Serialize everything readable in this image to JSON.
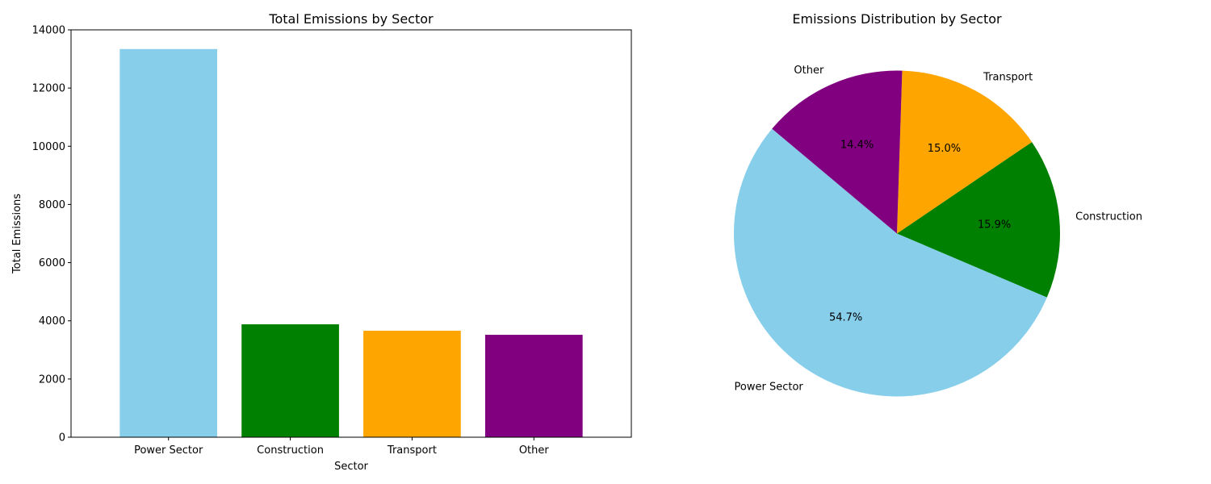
{
  "chart_data": [
    {
      "type": "bar",
      "title": "Total Emissions by Sector",
      "xlabel": "Sector",
      "ylabel": "Total Emissions",
      "categories": [
        "Power Sector",
        "Construction",
        "Transport",
        "Other"
      ],
      "values": [
        13340,
        3880,
        3660,
        3520
      ],
      "colors": [
        "#87ceeb",
        "#008000",
        "#ffa500",
        "#800080"
      ],
      "ylim": [
        0,
        14000
      ],
      "yticks": [
        0,
        2000,
        4000,
        6000,
        8000,
        10000,
        12000,
        14000
      ],
      "grid": false
    },
    {
      "type": "pie",
      "title": "Emissions Distribution by Sector",
      "labels": [
        "Power Sector",
        "Construction",
        "Transport",
        "Other"
      ],
      "values": [
        54.7,
        15.9,
        15.0,
        14.4
      ],
      "pct_labels": [
        "54.7%",
        "15.9%",
        "15.0%",
        "14.4%"
      ],
      "colors": [
        "#87ceeb",
        "#008000",
        "#ffa500",
        "#800080"
      ],
      "start_angle_deg": 140
    }
  ]
}
